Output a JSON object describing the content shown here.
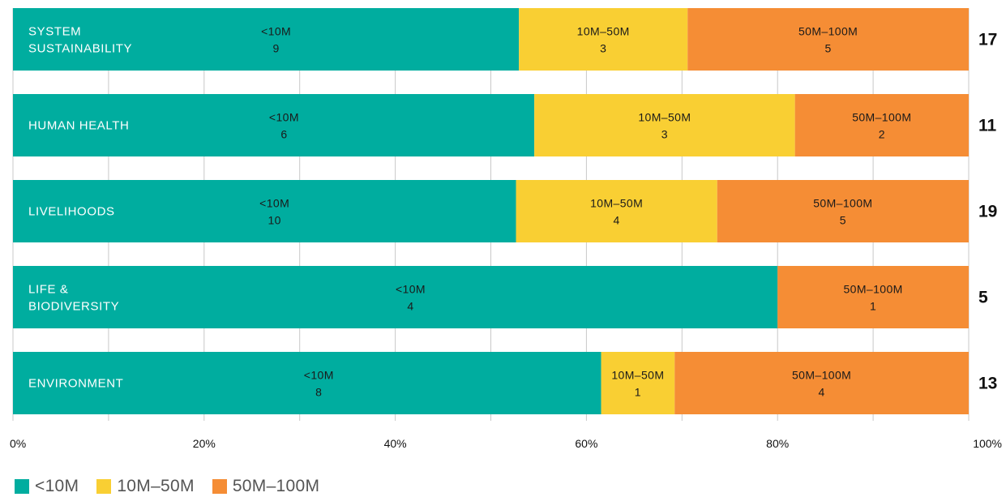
{
  "chart_data": {
    "type": "bar",
    "orientation": "horizontal",
    "stacked": "percent",
    "categories": [
      "SYSTEM\nSUSTAINABILITY",
      "HUMAN HEALTH",
      "LIVELIHOODS",
      "LIFE &\nBIODIVERSITY",
      "ENVIRONMENT"
    ],
    "series": [
      {
        "name": "<10M",
        "color": "#00ad9f",
        "values": [
          9,
          6,
          10,
          4,
          8
        ]
      },
      {
        "name": "10M–50M",
        "color": "#f9cf33",
        "values": [
          3,
          3,
          4,
          0,
          1
        ]
      },
      {
        "name": "50M–100M",
        "color": "#f58d35",
        "values": [
          5,
          2,
          5,
          1,
          4
        ]
      }
    ],
    "totals": [
      "17",
      "11",
      "19",
      "5",
      "13"
    ],
    "xticks": [
      "0%",
      "20%",
      "40%",
      "60%",
      "80%",
      "100%"
    ],
    "xlim": [
      0,
      100
    ],
    "grid": true,
    "legend": "bottom-left"
  }
}
